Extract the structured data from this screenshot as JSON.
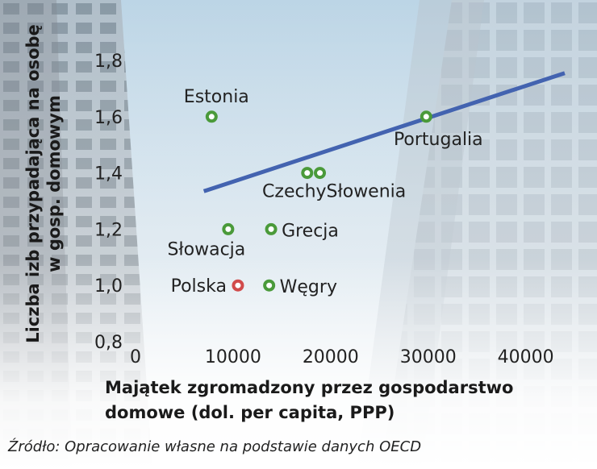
{
  "chart_data": {
    "type": "scatter",
    "xlabel": [
      "Majątek zgromadzony przez gospodarstwo",
      "domowe (dol. per capita, PPP)"
    ],
    "ylabel": [
      "Liczba izb przypadająca na osobę",
      "w gosp. domowym"
    ],
    "source": "Źródło: Opracowanie własne na podstawie danych OECD",
    "xlim": [
      0,
      44000
    ],
    "ylim": [
      0.8,
      1.8
    ],
    "x_ticks": [
      0,
      10000,
      20000,
      30000,
      40000
    ],
    "x_tick_labels": [
      "0",
      "10000",
      "20000",
      "30000",
      "40000"
    ],
    "y_ticks": [
      0.8,
      1.0,
      1.2,
      1.4,
      1.6,
      1.8
    ],
    "y_tick_labels": [
      "0,8",
      "1,0",
      "1,2",
      "1,4",
      "1,6",
      "1,8"
    ],
    "points": [
      {
        "label": "Estonia",
        "x": 7800,
        "y": 1.6,
        "color": "#4a9a3a"
      },
      {
        "label": "Portugalia",
        "x": 29800,
        "y": 1.6,
        "color": "#4a9a3a"
      },
      {
        "label": "Czechy",
        "x": 17600,
        "y": 1.4,
        "color": "#4a9a3a"
      },
      {
        "label": "Słowenia",
        "x": 18900,
        "y": 1.4,
        "color": "#4a9a3a"
      },
      {
        "label": "Słowacja",
        "x": 9500,
        "y": 1.2,
        "color": "#4a9a3a"
      },
      {
        "label": "Grecja",
        "x": 13900,
        "y": 1.2,
        "color": "#4a9a3a"
      },
      {
        "label": "Polska",
        "x": 10500,
        "y": 1.0,
        "color": "#d14b4b"
      },
      {
        "label": "Węgry",
        "x": 13700,
        "y": 1.0,
        "color": "#4a9a3a"
      }
    ],
    "trendline": {
      "x": [
        7000,
        44000
      ],
      "y": [
        1.335,
        1.755
      ],
      "color": "#4363b0"
    }
  }
}
